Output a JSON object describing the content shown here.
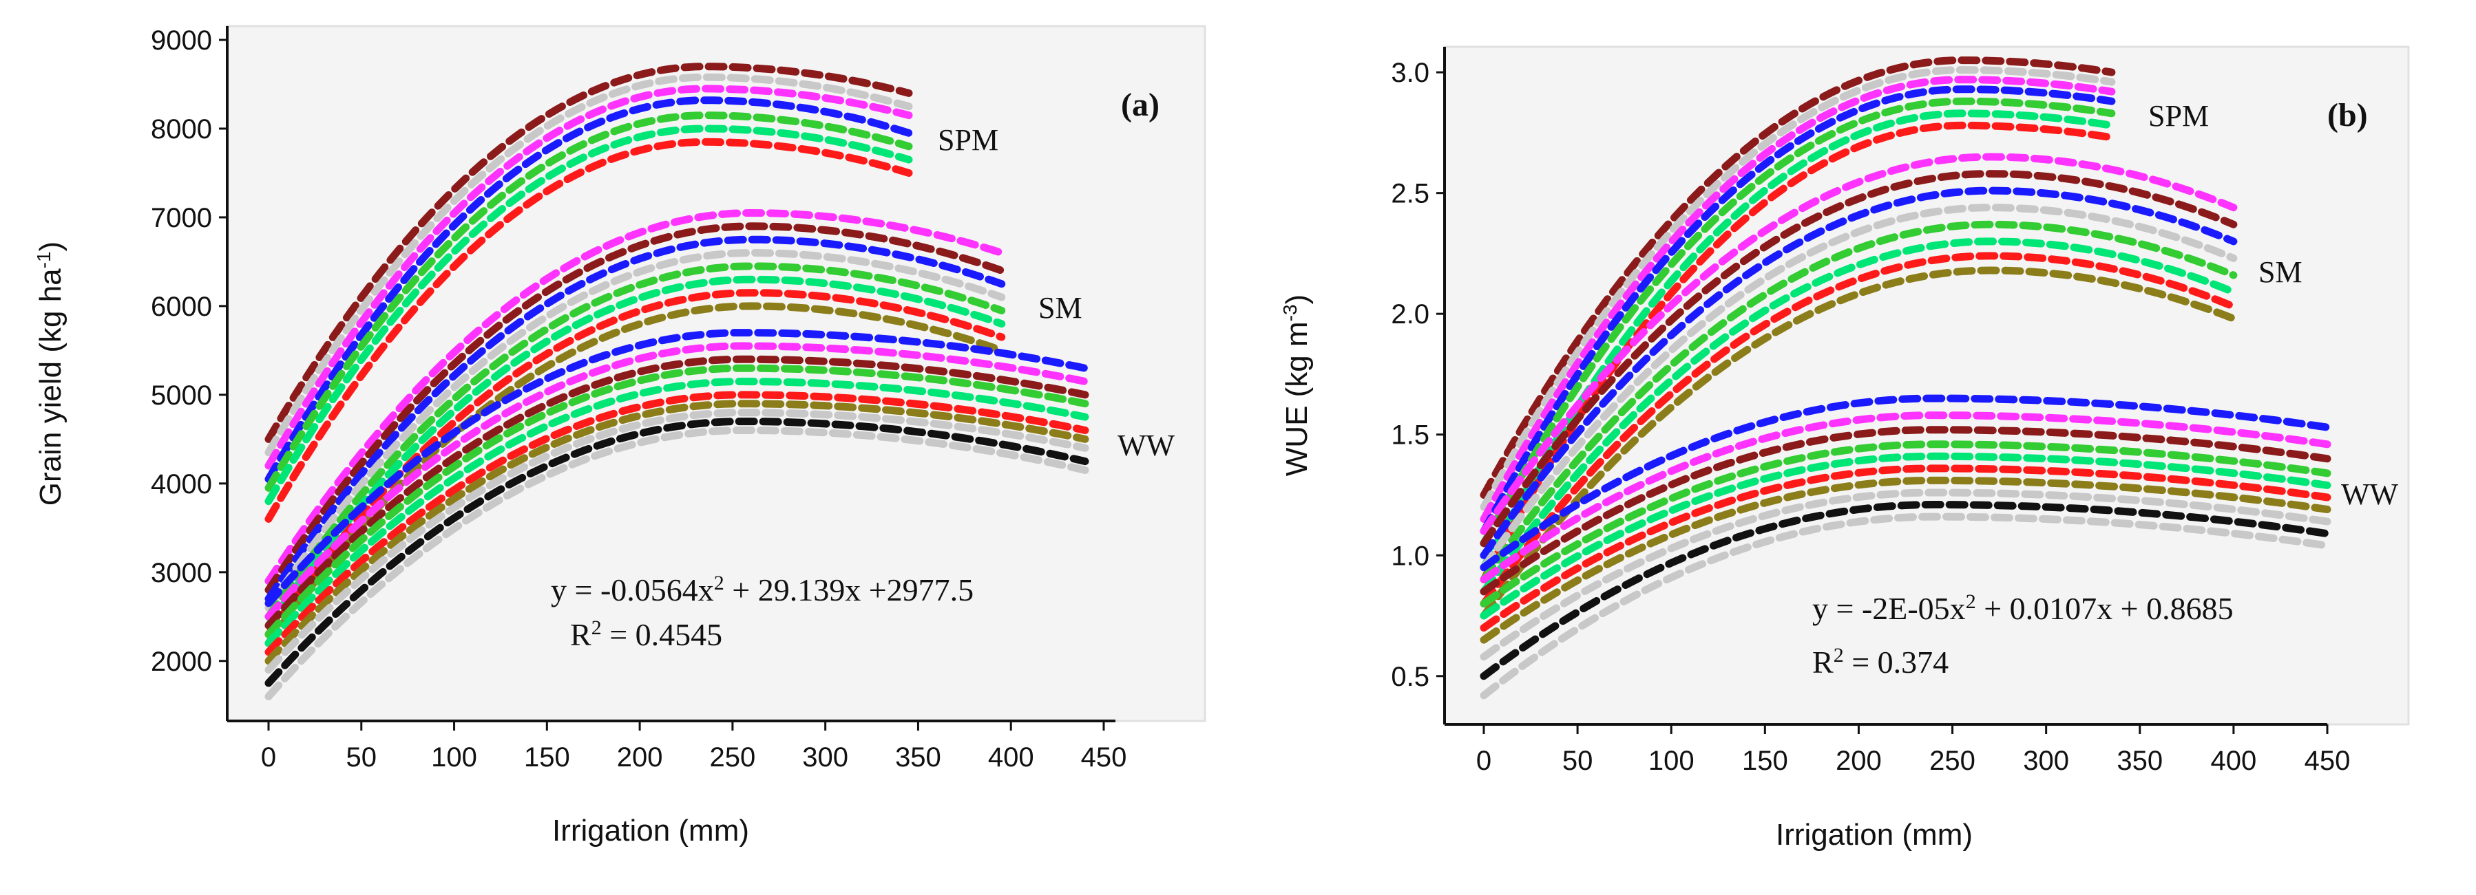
{
  "chart_data": [
    {
      "type": "line",
      "panel_label": "(a)",
      "ylabel": "Grain yield (kg ha",
      "ylabel_sup": "-1",
      "ylabel_close": ")",
      "xlabel": "Irrigation (mm)",
      "xlim": [
        0,
        450
      ],
      "ylim": [
        1500,
        9000
      ],
      "x_ticks": [
        "0",
        "50",
        "100",
        "150",
        "200",
        "250",
        "300",
        "350",
        "400",
        "450"
      ],
      "y_ticks": [
        "2000",
        "3000",
        "4000",
        "5000",
        "6000",
        "7000",
        "8000",
        "9000"
      ],
      "equation_prefix": "y = -0.0564x",
      "equation_sup": "2",
      "equation_suffix": " + 29.139x +2977.5",
      "r2_prefix": "R",
      "r2_sup": "2",
      "r2_suffix": " = 0.4545",
      "groups": [
        {
          "name": "SPM",
          "x_end": 345,
          "peak_x": 235,
          "start": [
            4500,
            4350,
            4200,
            4050,
            3950,
            3800,
            3600
          ],
          "peak": [
            8700,
            8580,
            8450,
            8320,
            8150,
            8000,
            7850
          ],
          "end": [
            8400,
            8250,
            8150,
            7950,
            7800,
            7650,
            7500
          ],
          "colors": [
            "#8b1a1a",
            "#c8c8c8",
            "#ff33ff",
            "#1a1aff",
            "#33cc33",
            "#00e676",
            "#ff1a1a"
          ]
        },
        {
          "name": "SM",
          "x_end": 395,
          "peak_x": 260,
          "start": [
            2900,
            2800,
            2700,
            2600,
            2500,
            2400,
            2300,
            2200
          ],
          "peak": [
            7050,
            6900,
            6750,
            6600,
            6450,
            6300,
            6150,
            6000
          ],
          "end": [
            6600,
            6400,
            6250,
            6100,
            5950,
            5800,
            5650,
            5500
          ],
          "colors": [
            "#ff33ff",
            "#8b1a1a",
            "#1a1aff",
            "#c8c8c8",
            "#33cc33",
            "#00e676",
            "#ff1a1a",
            "#8b7d1a"
          ]
        },
        {
          "name": "WW",
          "x_end": 440,
          "peak_x": 255,
          "start": [
            2650,
            2500,
            2400,
            2300,
            2200,
            2100,
            2000,
            1900,
            1750,
            1600
          ],
          "peak": [
            5700,
            5550,
            5400,
            5300,
            5150,
            5000,
            4900,
            4800,
            4700,
            4600
          ],
          "end": [
            5300,
            5150,
            5000,
            4900,
            4750,
            4600,
            4500,
            4400,
            4250,
            4150
          ],
          "colors": [
            "#1a1aff",
            "#ff33ff",
            "#8b1a1a",
            "#33cc33",
            "#00e676",
            "#ff1a1a",
            "#8b7d1a",
            "#c8c8c8",
            "#111111",
            "#c8c8c8"
          ]
        }
      ]
    },
    {
      "type": "line",
      "panel_label": "(b)",
      "ylabel": "WUE (kg m",
      "ylabel_sup": "-3",
      "ylabel_close": ")",
      "xlabel": "Irrigation (mm)",
      "xlim": [
        0,
        450
      ],
      "ylim": [
        0.3,
        3.1
      ],
      "x_ticks": [
        "0",
        "50",
        "100",
        "150",
        "200",
        "250",
        "300",
        "350",
        "400",
        "450"
      ],
      "y_ticks": [
        "0.5",
        "1.0",
        "1.5",
        "2.0",
        "2.5",
        "3.0"
      ],
      "equation_prefix": "y = -2E-05x",
      "equation_sup": "2",
      "equation_suffix": " + 0.0107x + 0.8685",
      "r2_prefix": "R",
      "r2_sup": "2",
      "r2_suffix": " = 0.374",
      "groups": [
        {
          "name": "SPM",
          "x_end": 335,
          "peak_x": 255,
          "start": [
            1.25,
            1.2,
            1.15,
            1.1,
            1.05,
            0.95,
            0.9
          ],
          "peak": [
            3.05,
            3.01,
            2.97,
            2.93,
            2.88,
            2.83,
            2.78
          ],
          "end": [
            3.0,
            2.96,
            2.92,
            2.88,
            2.83,
            2.78,
            2.73
          ],
          "colors": [
            "#8b1a1a",
            "#c8c8c8",
            "#ff33ff",
            "#1a1aff",
            "#33cc33",
            "#00e676",
            "#ff1a1a"
          ]
        },
        {
          "name": "SM",
          "x_end": 400,
          "peak_x": 270,
          "start": [
            1.1,
            1.05,
            1.0,
            0.95,
            0.9,
            0.85,
            0.8,
            0.75
          ],
          "peak": [
            2.65,
            2.58,
            2.51,
            2.44,
            2.37,
            2.3,
            2.24,
            2.18
          ],
          "end": [
            2.44,
            2.37,
            2.3,
            2.23,
            2.16,
            2.09,
            2.03,
            1.98
          ],
          "colors": [
            "#ff33ff",
            "#8b1a1a",
            "#1a1aff",
            "#c8c8c8",
            "#33cc33",
            "#00e676",
            "#ff1a1a",
            "#8b7d1a"
          ]
        },
        {
          "name": "WW",
          "x_end": 450,
          "peak_x": 240,
          "start": [
            0.95,
            0.9,
            0.85,
            0.8,
            0.75,
            0.7,
            0.65,
            0.58,
            0.5,
            0.42
          ],
          "peak": [
            1.65,
            1.58,
            1.52,
            1.46,
            1.41,
            1.36,
            1.31,
            1.26,
            1.21,
            1.16
          ],
          "end": [
            1.53,
            1.46,
            1.4,
            1.34,
            1.29,
            1.24,
            1.19,
            1.14,
            1.09,
            1.04
          ],
          "colors": [
            "#1a1aff",
            "#ff33ff",
            "#8b1a1a",
            "#33cc33",
            "#00e676",
            "#ff1a1a",
            "#8b7d1a",
            "#c8c8c8",
            "#111111",
            "#c8c8c8"
          ]
        }
      ]
    }
  ]
}
